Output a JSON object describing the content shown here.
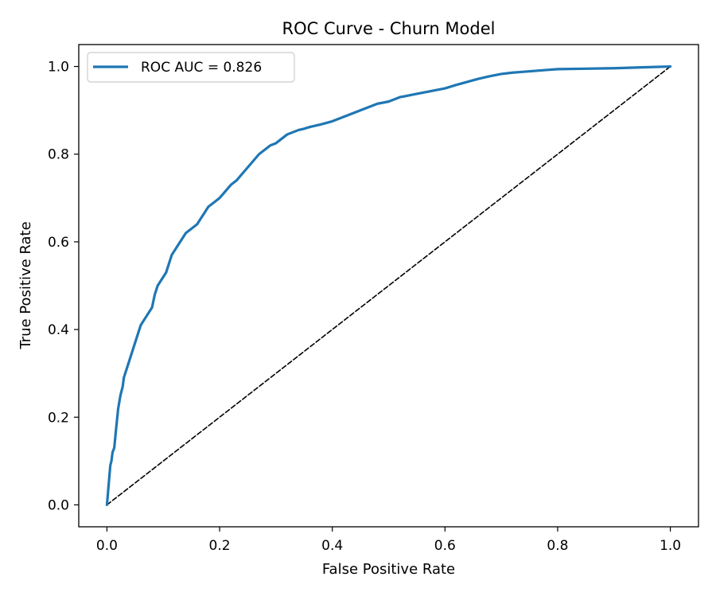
{
  "chart_data": {
    "type": "line",
    "title": "ROC Curve - Churn Model",
    "xlabel": "False Positive Rate",
    "ylabel": "True Positive Rate",
    "xlim": [
      -0.05,
      1.05
    ],
    "ylim": [
      -0.05,
      1.05
    ],
    "xticks": [
      0.0,
      0.2,
      0.4,
      0.6,
      0.8,
      1.0
    ],
    "yticks": [
      0.0,
      0.2,
      0.4,
      0.6,
      0.8,
      1.0
    ],
    "xtick_labels": [
      "0.0",
      "0.2",
      "0.4",
      "0.6",
      "0.8",
      "1.0"
    ],
    "ytick_labels": [
      "0.0",
      "0.2",
      "0.4",
      "0.6",
      "0.8",
      "1.0"
    ],
    "grid": false,
    "legend_position": "top-left",
    "series": [
      {
        "name": "ROC AUC = 0.826",
        "color": "#1f77b4",
        "style": "solid",
        "x": [
          0.0,
          0.002,
          0.004,
          0.006,
          0.008,
          0.01,
          0.013,
          0.016,
          0.02,
          0.024,
          0.028,
          0.03,
          0.035,
          0.04,
          0.045,
          0.05,
          0.055,
          0.06,
          0.065,
          0.07,
          0.075,
          0.08,
          0.085,
          0.09,
          0.095,
          0.1,
          0.105,
          0.11,
          0.115,
          0.12,
          0.125,
          0.13,
          0.14,
          0.15,
          0.16,
          0.17,
          0.18,
          0.19,
          0.2,
          0.21,
          0.22,
          0.23,
          0.24,
          0.25,
          0.26,
          0.27,
          0.28,
          0.29,
          0.3,
          0.31,
          0.32,
          0.33,
          0.34,
          0.35,
          0.36,
          0.38,
          0.4,
          0.42,
          0.44,
          0.46,
          0.48,
          0.5,
          0.52,
          0.54,
          0.56,
          0.58,
          0.6,
          0.62,
          0.64,
          0.66,
          0.68,
          0.7,
          0.72,
          0.74,
          0.76,
          0.78,
          0.8,
          0.85,
          0.9,
          0.95,
          1.0
        ],
        "y": [
          0.0,
          0.03,
          0.06,
          0.09,
          0.1,
          0.12,
          0.13,
          0.17,
          0.22,
          0.25,
          0.27,
          0.29,
          0.31,
          0.33,
          0.35,
          0.37,
          0.39,
          0.41,
          0.42,
          0.43,
          0.44,
          0.45,
          0.48,
          0.5,
          0.51,
          0.52,
          0.53,
          0.55,
          0.57,
          0.58,
          0.59,
          0.6,
          0.62,
          0.63,
          0.64,
          0.66,
          0.68,
          0.69,
          0.7,
          0.715,
          0.73,
          0.74,
          0.755,
          0.77,
          0.785,
          0.8,
          0.81,
          0.82,
          0.825,
          0.835,
          0.845,
          0.85,
          0.855,
          0.858,
          0.862,
          0.868,
          0.875,
          0.885,
          0.895,
          0.905,
          0.915,
          0.92,
          0.93,
          0.935,
          0.94,
          0.945,
          0.95,
          0.958,
          0.965,
          0.972,
          0.978,
          0.983,
          0.986,
          0.988,
          0.99,
          0.992,
          0.994,
          0.995,
          0.996,
          0.998,
          1.0
        ]
      },
      {
        "color": "#000000",
        "style": "dashed",
        "x": [
          0.0,
          1.0
        ],
        "y": [
          0.0,
          1.0
        ]
      }
    ]
  }
}
